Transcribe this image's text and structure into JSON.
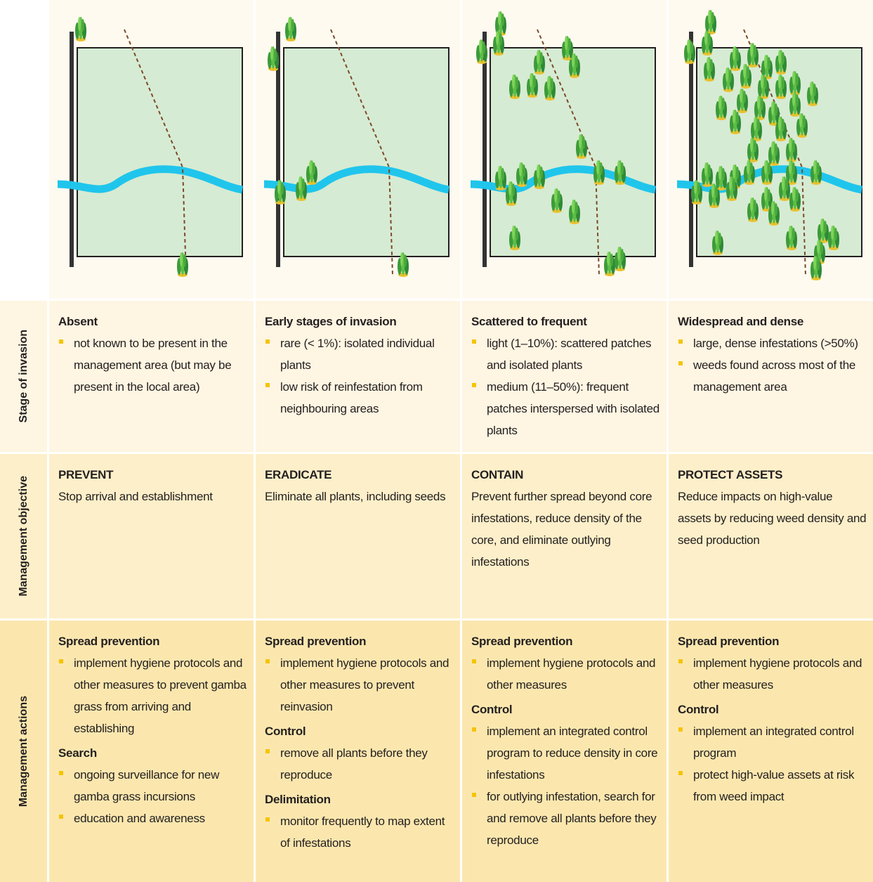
{
  "row_labels": [
    "Stage of invasion",
    "Management objective",
    "Management actions"
  ],
  "columns": [
    {
      "stage": {
        "title": "Absent",
        "bullets": [
          "not known to be present in the management area (but may be present in the local area)"
        ]
      },
      "objective": {
        "title": "PREVENT",
        "text": "Stop arrival and establishment"
      },
      "actions": [
        {
          "heading": "Spread prevention",
          "bullets": [
            "implement hygiene protocols and other measures to prevent gamba grass from arriving and establishing"
          ]
        },
        {
          "heading": "Search",
          "bullets": [
            "ongoing surveillance for new gamba grass incursions",
            "education and awareness"
          ]
        }
      ]
    },
    {
      "stage": {
        "title": "Early stages of invasion",
        "bullets": [
          "rare (< 1%): isolated individual plants",
          "low risk of reinfestation from neighbouring areas"
        ]
      },
      "objective": {
        "title": "ERADICATE",
        "text": "Eliminate all plants, including seeds"
      },
      "actions": [
        {
          "heading": "Spread prevention",
          "bullets": [
            "implement hygiene protocols and other measures to prevent reinvasion"
          ]
        },
        {
          "heading": "Control",
          "bullets": [
            "remove all plants before they reproduce"
          ]
        },
        {
          "heading": "Delimitation",
          "bullets": [
            "monitor frequently to map extent of infestations"
          ]
        }
      ]
    },
    {
      "stage": {
        "title": "Scattered to frequent",
        "bullets": [
          "light (1–10%): scattered patches and isolated plants",
          "medium (11–50%): frequent patches interspersed with isolated plants"
        ]
      },
      "objective": {
        "title": "CONTAIN",
        "text": "Prevent further spread beyond core infestations, reduce density of the core, and eliminate outlying infestations"
      },
      "actions": [
        {
          "heading": "Spread prevention",
          "bullets": [
            "implement hygiene protocols and other measures"
          ]
        },
        {
          "heading": "Control",
          "bullets": [
            "implement an integrated control program to reduce density in core infestations",
            "for outlying infestation, search for and remove all plants before they reproduce"
          ]
        }
      ]
    },
    {
      "stage": {
        "title": "Widespread and dense",
        "bullets": [
          "large, dense infestations (>50%)",
          "weeds found across most of the management area"
        ]
      },
      "objective": {
        "title": "PROTECT ASSETS",
        "text": "Reduce impacts on high-value assets by reducing weed density and seed production"
      },
      "actions": [
        {
          "heading": "Spread prevention",
          "bullets": [
            "implement hygiene protocols and other measures"
          ]
        },
        {
          "heading": "Control",
          "bullets": [
            "implement an integrated control program",
            "protect high-value assets at risk from weed impact"
          ]
        }
      ]
    }
  ]
}
